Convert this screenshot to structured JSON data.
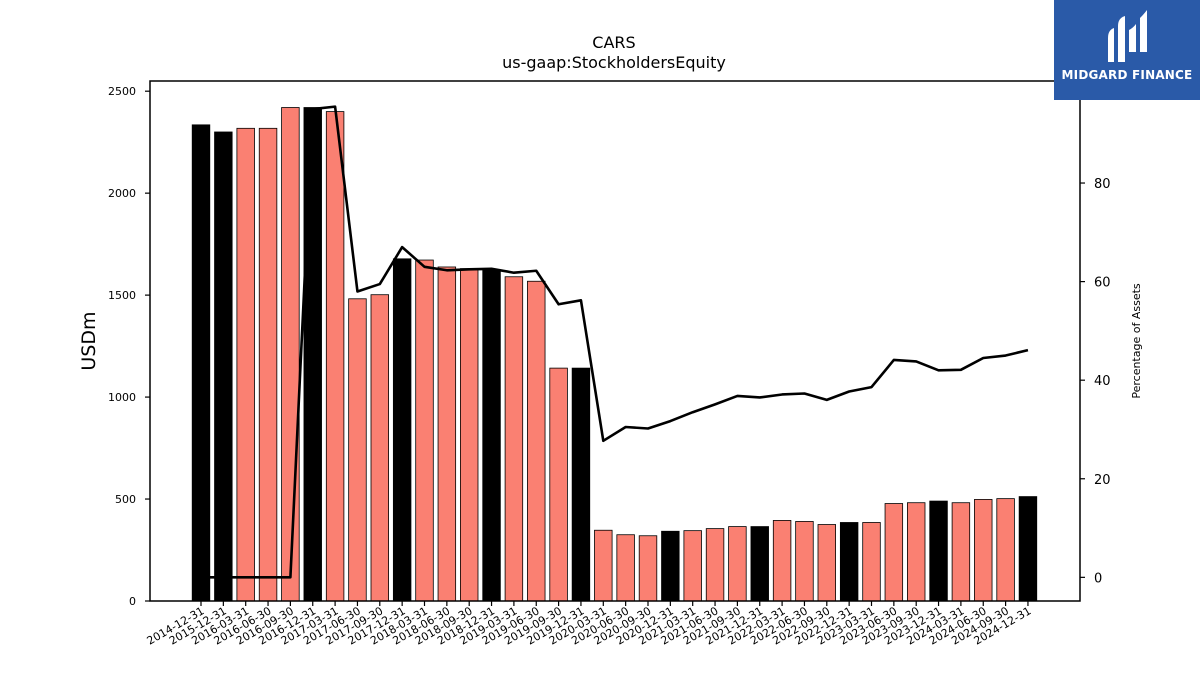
{
  "chart_data": {
    "type": "bar",
    "title": "CARS",
    "subtitle": "us-gaap:StockholdersEquity",
    "ylabel": "USDm",
    "y2label": "Percentage of Assets",
    "ylim": [
      0,
      2550
    ],
    "y2lim": [
      -4.8,
      100.7
    ],
    "yticks": [
      0,
      500,
      1000,
      1500,
      2000,
      2500
    ],
    "y2ticks": [
      0,
      20,
      40,
      60,
      80
    ],
    "categories": [
      "2014-12-31",
      "2015-12-31",
      "2016-03-31",
      "2016-06-30",
      "2016-09-30",
      "2016-12-31",
      "2017-03-31",
      "2017-06-30",
      "2017-09-30",
      "2017-12-31",
      "2018-03-31",
      "2018-06-30",
      "2018-09-30",
      "2018-12-31",
      "2019-03-31",
      "2019-06-30",
      "2019-09-30",
      "2019-12-31",
      "2020-03-31",
      "2020-06-30",
      "2020-09-30",
      "2020-12-31",
      "2021-03-31",
      "2021-06-30",
      "2021-09-30",
      "2021-12-31",
      "2022-03-31",
      "2022-06-30",
      "2022-09-30",
      "2022-12-31",
      "2023-03-31",
      "2023-06-30",
      "2023-09-30",
      "2023-12-31",
      "2024-03-31",
      "2024-06-30",
      "2024-09-30",
      "2024-12-31"
    ],
    "series": [
      {
        "kind": "bar",
        "values": [
          2335,
          2300,
          2318,
          2318,
          2420,
          2420,
          2400,
          1482,
          1502,
          1678,
          1672,
          1638,
          1630,
          1625,
          1590,
          1568,
          1142,
          1142,
          347,
          325,
          320,
          342,
          345,
          355,
          365,
          365,
          395,
          390,
          375,
          385,
          385,
          478,
          482,
          490,
          482,
          498,
          502,
          512
        ],
        "annual_color": "#000000",
        "quarter_color": "#fa8072",
        "annual_flags": [
          true,
          true,
          false,
          false,
          false,
          true,
          false,
          false,
          false,
          true,
          false,
          false,
          false,
          true,
          false,
          false,
          false,
          true,
          false,
          false,
          false,
          true,
          false,
          false,
          false,
          true,
          false,
          false,
          false,
          true,
          false,
          false,
          false,
          true,
          false,
          false,
          false,
          true
        ]
      },
      {
        "kind": "line",
        "axis": "right",
        "color": "#000000",
        "values": [
          0,
          0,
          0,
          0,
          0,
          95,
          95.5,
          58,
          59.5,
          67,
          63,
          62.3,
          62.5,
          62.6,
          61.8,
          62.2,
          55.4,
          56.2,
          27.7,
          30.5,
          30.2,
          31.7,
          33.5,
          35.1,
          36.8,
          36.5,
          37.1,
          37.3,
          36,
          37.7,
          38.6,
          44.1,
          43.8,
          42,
          42.1,
          44.5,
          45,
          46.1
        ]
      }
    ],
    "grid": false,
    "legend": "none"
  },
  "branding": {
    "name": "MIDGARD FINANCE",
    "bg_color": "#2a5aa8"
  }
}
